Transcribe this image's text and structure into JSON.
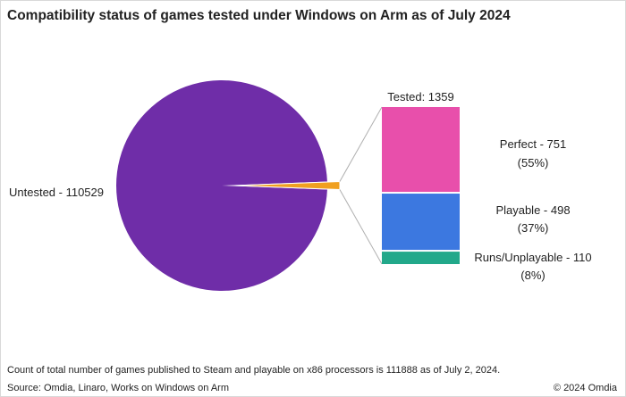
{
  "title": "Compatibility status of games tested under Windows on Arm as of July 2024",
  "footnote": "Count of total number of games published to Steam and playable on x86 processors is 111888 as of July 2, 2024.",
  "source": "Source: Omdia, Linaro, Works on Windows on Arm",
  "copyright": "© 2024 Omdia",
  "colors": {
    "untested": "#6f2da8",
    "tested": "#f0a020",
    "perfect": "#e84fab",
    "playable": "#3c78e0",
    "runs": "#22a88a",
    "connector": "#b0b0b0"
  },
  "chart_data": {
    "type": "pie",
    "slices": [
      {
        "name": "Untested",
        "value": 110529,
        "label": "Untested - 110529"
      },
      {
        "name": "Tested",
        "value": 1359
      }
    ],
    "breakout": {
      "label": "Tested: 1359",
      "total": 1359,
      "segments": [
        {
          "name": "Perfect",
          "value": 751,
          "line1": "Perfect - 751",
          "line2": "(55%)"
        },
        {
          "name": "Playable",
          "value": 498,
          "line1": "Playable - 498",
          "line2": "(37%)"
        },
        {
          "name": "Runs/Unplayable",
          "value": 110,
          "line1": "Runs/Unplayable - 110",
          "line2": "(8%)"
        }
      ]
    }
  }
}
